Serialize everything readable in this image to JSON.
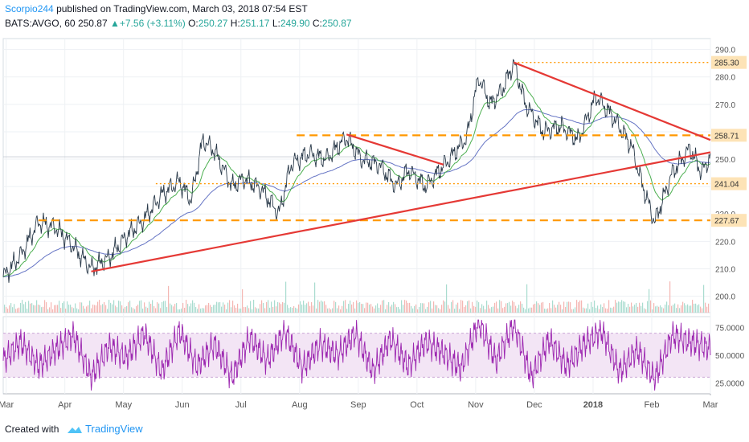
{
  "header": {
    "author": "Scorpio244",
    "published_text": "published on TradingView.com, March 03, 2018 07:54 EST",
    "symbol_text": "BATS:AVGO, 60",
    "last": "250.87",
    "change": "+7.56 (+3.11%)",
    "ohlc": [
      {
        "label": "O:",
        "value": "250.27"
      },
      {
        "label": "H:",
        "value": "251.17"
      },
      {
        "label": "L:",
        "value": "249.90"
      },
      {
        "label": "C:",
        "value": "250.87"
      }
    ]
  },
  "footer": {
    "created_with": "Created with",
    "brand": "TradingView"
  },
  "colors": {
    "price": "#2a3a4a",
    "ema_green": "#4caf50",
    "sma_blue": "#3f51b5",
    "trend_red": "#e53935",
    "level_orange": "#ff9800",
    "rsi": "#9c27b0",
    "rsi_band": "#f3e5f5"
  },
  "chart_data": [
    {
      "type": "line",
      "title": "",
      "panel": "price",
      "y_axis_ticks": [
        200,
        210,
        220,
        230,
        240,
        250,
        260,
        270,
        280,
        290
      ],
      "ylim": [
        194,
        294
      ],
      "x_tick_labels": [
        "Mar",
        "Apr",
        "May",
        "Jun",
        "Jul",
        "Aug",
        "Sep",
        "Oct",
        "Nov",
        "Dec",
        "2018",
        "Feb",
        "Mar"
      ],
      "price_labels": [
        "285.30",
        "258.71",
        "241.04",
        "227.67"
      ],
      "levels": [
        {
          "name": "285.30",
          "value": 285.3,
          "style": "dotted",
          "from_month": 8.7
        },
        {
          "name": "258.71",
          "value": 258.71,
          "style": "dashed",
          "from_month": 5.0
        },
        {
          "name": "241.04",
          "value": 241.04,
          "style": "dotted",
          "from_month": 2.6
        },
        {
          "name": "227.67",
          "value": 227.67,
          "style": "dashed",
          "from_month": 0.6
        }
      ],
      "trendlines": [
        {
          "from": [
            1.5,
            209
          ],
          "to": [
            12.05,
            252.5
          ]
        },
        {
          "from": [
            8.7,
            285.3
          ],
          "to": [
            12.05,
            257
          ]
        },
        {
          "from": [
            5.85,
            259
          ],
          "to": [
            7.5,
            248
          ]
        }
      ],
      "series": [
        {
          "x": [
            0,
            0.3,
            0.6,
            0.9,
            1.2,
            1.5,
            1.8,
            2.1,
            2.4,
            2.7,
            3.0,
            3.2,
            3.4,
            3.6,
            3.9,
            4.1,
            4.4,
            4.7,
            4.9,
            5.2,
            5.5,
            5.85,
            6.1,
            6.4,
            6.7,
            6.9,
            7.2,
            7.4,
            7.6,
            7.9,
            8.1,
            8.3,
            8.5,
            8.7,
            8.9,
            9.2,
            9.5,
            9.8,
            10.1,
            10.4,
            10.7,
            10.9,
            11.1,
            11.4,
            11.7,
            11.9,
            12.05
          ],
          "values": [
            207,
            215,
            227,
            225,
            218,
            210,
            214,
            222,
            228,
            237,
            242,
            235,
            257,
            253,
            240,
            243,
            239,
            230,
            248,
            252,
            250,
            258,
            250,
            248,
            240,
            246,
            240,
            245,
            250,
            258,
            280,
            270,
            275,
            285,
            270,
            260,
            262,
            257,
            273,
            265,
            255,
            240,
            227,
            245,
            254,
            245,
            251
          ]
        }
      ]
    },
    {
      "type": "line",
      "title": "",
      "panel": "rsi",
      "y_axis_ticks": [
        25,
        50,
        75
      ],
      "y_tick_labels": [
        "25.0000",
        "50.0000",
        "75.0000"
      ],
      "ylim": [
        15,
        85
      ],
      "band": [
        30,
        70
      ],
      "series": [
        {
          "x": [
            0,
            0.3,
            0.6,
            0.9,
            1.2,
            1.5,
            1.8,
            2.1,
            2.4,
            2.7,
            3.0,
            3.3,
            3.6,
            3.9,
            4.2,
            4.5,
            4.8,
            5.1,
            5.4,
            5.7,
            6.0,
            6.3,
            6.6,
            6.9,
            7.2,
            7.5,
            7.8,
            8.1,
            8.4,
            8.7,
            9.0,
            9.3,
            9.6,
            9.9,
            10.2,
            10.5,
            10.8,
            11.1,
            11.4,
            11.7,
            12.05
          ],
          "values": [
            45,
            62,
            40,
            55,
            68,
            30,
            58,
            48,
            70,
            35,
            72,
            40,
            60,
            30,
            66,
            45,
            72,
            38,
            60,
            50,
            70,
            35,
            65,
            40,
            62,
            52,
            38,
            80,
            45,
            78,
            30,
            64,
            40,
            60,
            72,
            35,
            55,
            28,
            68,
            62,
            56
          ]
        }
      ]
    }
  ]
}
